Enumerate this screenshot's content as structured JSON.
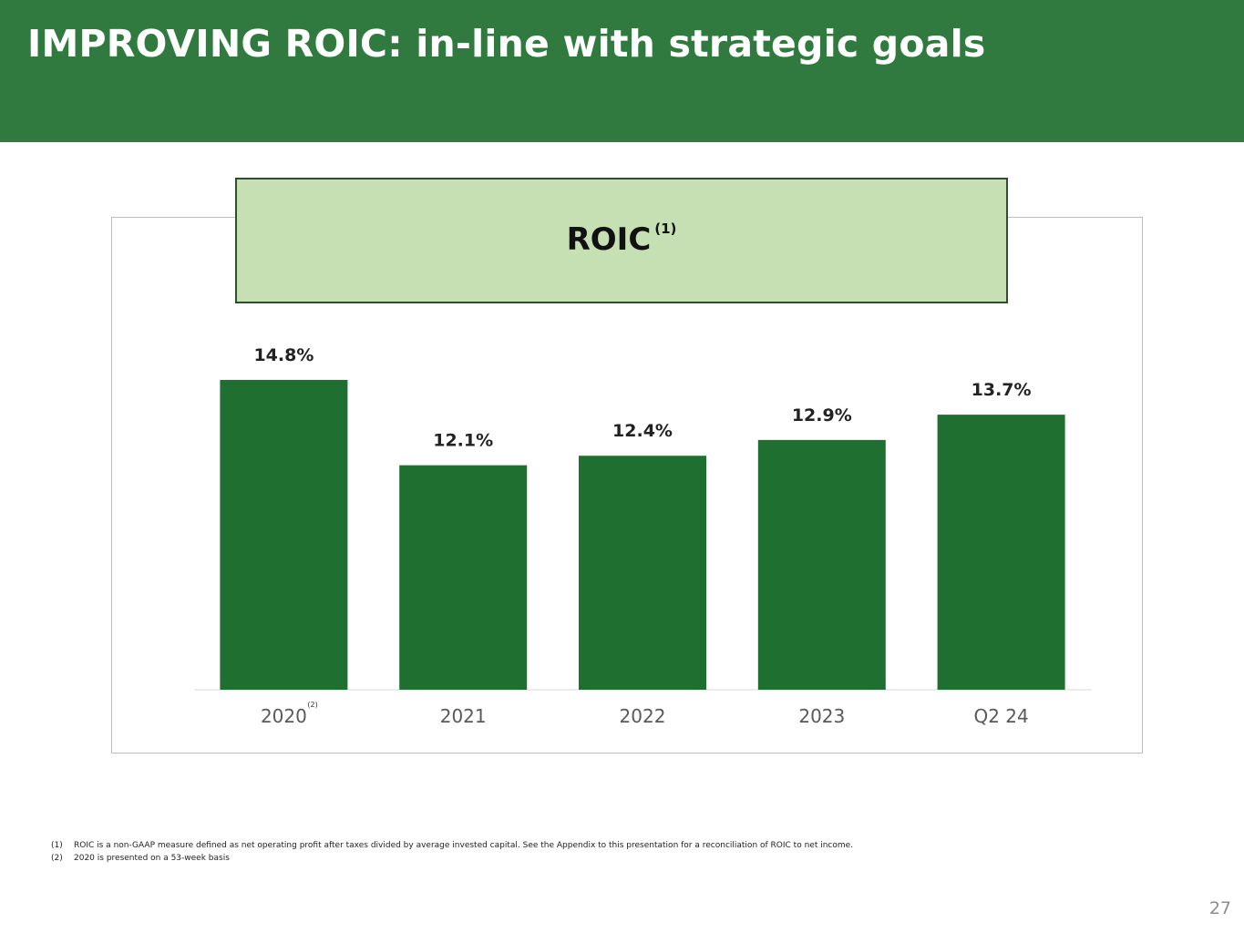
{
  "header": {
    "title": "IMPROVING ROIC: in-line with strategic goals"
  },
  "chart_data": {
    "type": "bar",
    "title": "ROIC",
    "title_footnote": "(1)",
    "categories": [
      "2020",
      "2021",
      "2022",
      "2023",
      "Q2 24"
    ],
    "category_footnotes": [
      "(2)",
      "",
      "",
      "",
      ""
    ],
    "values": [
      14.8,
      12.1,
      12.4,
      12.9,
      13.7
    ],
    "value_labels": [
      "14.8%",
      "12.1%",
      "12.4%",
      "12.9%",
      "13.7%"
    ],
    "ylim": [
      5,
      15
    ],
    "grid": false,
    "legend": "none"
  },
  "colors": {
    "header_bg": "#317a3f",
    "bar": "#1f6f30",
    "title_box_bg": "#c6e0b4"
  },
  "footnotes": [
    {
      "mark": "(1)",
      "text": "ROIC is a non-GAAP measure defined as net operating profit after taxes divided by average invested capital. See the Appendix to this presentation for a reconciliation of ROIC to net income."
    },
    {
      "mark": "(2)",
      "text": "2020 is presented on a 53-week basis"
    }
  ],
  "page": {
    "number": "27"
  }
}
